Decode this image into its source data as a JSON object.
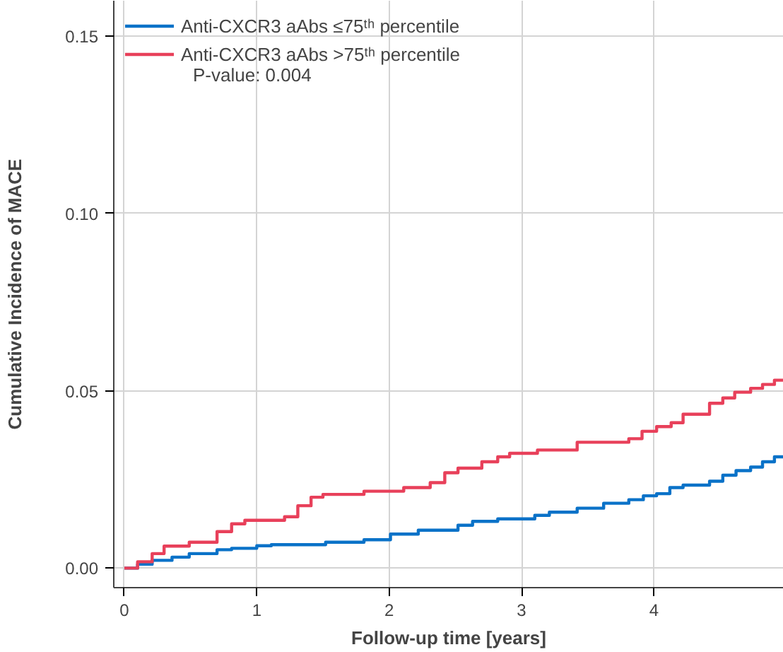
{
  "chart_data": {
    "type": "step",
    "xlabel": "Follow-up time [years]",
    "ylabel": "Cumulative Incidence of MACE",
    "annotations": [
      "P-value: 0.004"
    ],
    "series": [
      {
        "name": "Anti-CXCR3 aAbs ≤75ᵗʰ percentile",
        "color": "#0a72c8",
        "x": [
          0,
          0.1,
          0.21,
          0.36,
          0.49,
          0.7,
          0.81,
          1.0,
          1.11,
          1.52,
          1.81,
          2.01,
          2.22,
          2.52,
          2.63,
          2.82,
          3.1,
          3.21,
          3.42,
          3.62,
          3.81,
          3.92,
          4.02,
          4.12,
          4.22,
          4.42,
          4.52,
          4.62,
          4.73,
          4.82,
          4.91,
          4.98
        ],
        "values": [
          0,
          0.0011,
          0.0022,
          0.0031,
          0.0041,
          0.0052,
          0.0056,
          0.0063,
          0.0066,
          0.0073,
          0.008,
          0.0096,
          0.0107,
          0.0121,
          0.0132,
          0.0139,
          0.0149,
          0.0158,
          0.0169,
          0.0183,
          0.0193,
          0.0204,
          0.021,
          0.0227,
          0.0234,
          0.0245,
          0.0262,
          0.0275,
          0.0285,
          0.03,
          0.0314,
          0.0314
        ]
      },
      {
        "name": "Anti-CXCR3 aAbs >75ᵗʰ percentile",
        "color": "#e8405a",
        "x": [
          0,
          0.1,
          0.21,
          0.3,
          0.49,
          0.7,
          0.81,
          0.91,
          1.21,
          1.31,
          1.41,
          1.5,
          1.81,
          2.11,
          2.31,
          2.42,
          2.52,
          2.7,
          2.82,
          2.91,
          3.12,
          3.42,
          3.81,
          3.91,
          4.02,
          4.13,
          4.22,
          4.42,
          4.52,
          4.61,
          4.73,
          4.82,
          4.91,
          4.98
        ],
        "values": [
          0,
          0.0018,
          0.0041,
          0.0062,
          0.0073,
          0.0103,
          0.0125,
          0.0135,
          0.0145,
          0.0176,
          0.02,
          0.0208,
          0.0217,
          0.0227,
          0.0241,
          0.0269,
          0.0282,
          0.03,
          0.0314,
          0.0324,
          0.0333,
          0.0355,
          0.0365,
          0.0386,
          0.0399,
          0.041,
          0.0434,
          0.0465,
          0.048,
          0.0496,
          0.0507,
          0.0518,
          0.053,
          0.053
        ]
      }
    ],
    "xlim": [
      -0.08,
      4.98
    ],
    "ylim": [
      -0.0055,
      0.16
    ],
    "xticks": [
      0,
      1,
      2,
      3,
      4
    ],
    "yticks": [
      {
        "value": 0,
        "label": "0.00"
      },
      {
        "value": 0.05,
        "label": "0.05"
      },
      {
        "value": 0.1,
        "label": "0.10"
      },
      {
        "value": 0.15,
        "label": "0.15"
      }
    ],
    "grid": true,
    "legend": "top left",
    "line_style": "solid"
  }
}
